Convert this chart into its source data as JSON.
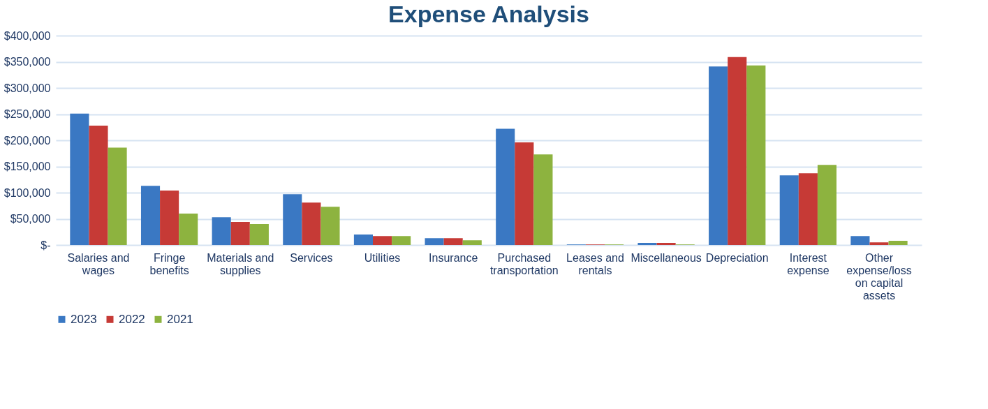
{
  "chart_data": {
    "type": "bar",
    "title": "Expense Analysis",
    "categories": [
      "Salaries and wages",
      "Fringe benefits",
      "Materials and supplies",
      "Services",
      "Utilities",
      "Insurance",
      "Purchased transportation",
      "Leases and rentals",
      "Miscellaneous",
      "Depreciation",
      "Interest expense",
      "Other expense/loss on capital assets"
    ],
    "series": [
      {
        "name": "2023",
        "color": "#3a78c3",
        "values": [
          251000,
          113000,
          53000,
          97000,
          20000,
          13000,
          222000,
          1000,
          4000,
          341000,
          133000,
          17000
        ]
      },
      {
        "name": "2022",
        "color": "#c63a36",
        "values": [
          228000,
          104000,
          44000,
          81000,
          17000,
          13000,
          196000,
          1000,
          4000,
          359000,
          137000,
          5000
        ]
      },
      {
        "name": "2021",
        "color": "#8db33f",
        "values": [
          186000,
          60000,
          40000,
          73000,
          17000,
          9000,
          173000,
          1000,
          1000,
          343000,
          153000,
          8000
        ]
      }
    ],
    "ylim": [
      0,
      400000
    ],
    "yticks": [
      {
        "value": 0,
        "label": "$-"
      },
      {
        "value": 50000,
        "label": "$50,000"
      },
      {
        "value": 100000,
        "label": "$100,000"
      },
      {
        "value": 150000,
        "label": "$150,000"
      },
      {
        "value": 200000,
        "label": "$200,000"
      },
      {
        "value": 250000,
        "label": "$250,000"
      },
      {
        "value": 300000,
        "label": "$300,000"
      },
      {
        "value": 350000,
        "label": "$350,000"
      },
      {
        "value": 400000,
        "label": "$400,000"
      }
    ],
    "grid": "y",
    "legend": "bottom"
  }
}
